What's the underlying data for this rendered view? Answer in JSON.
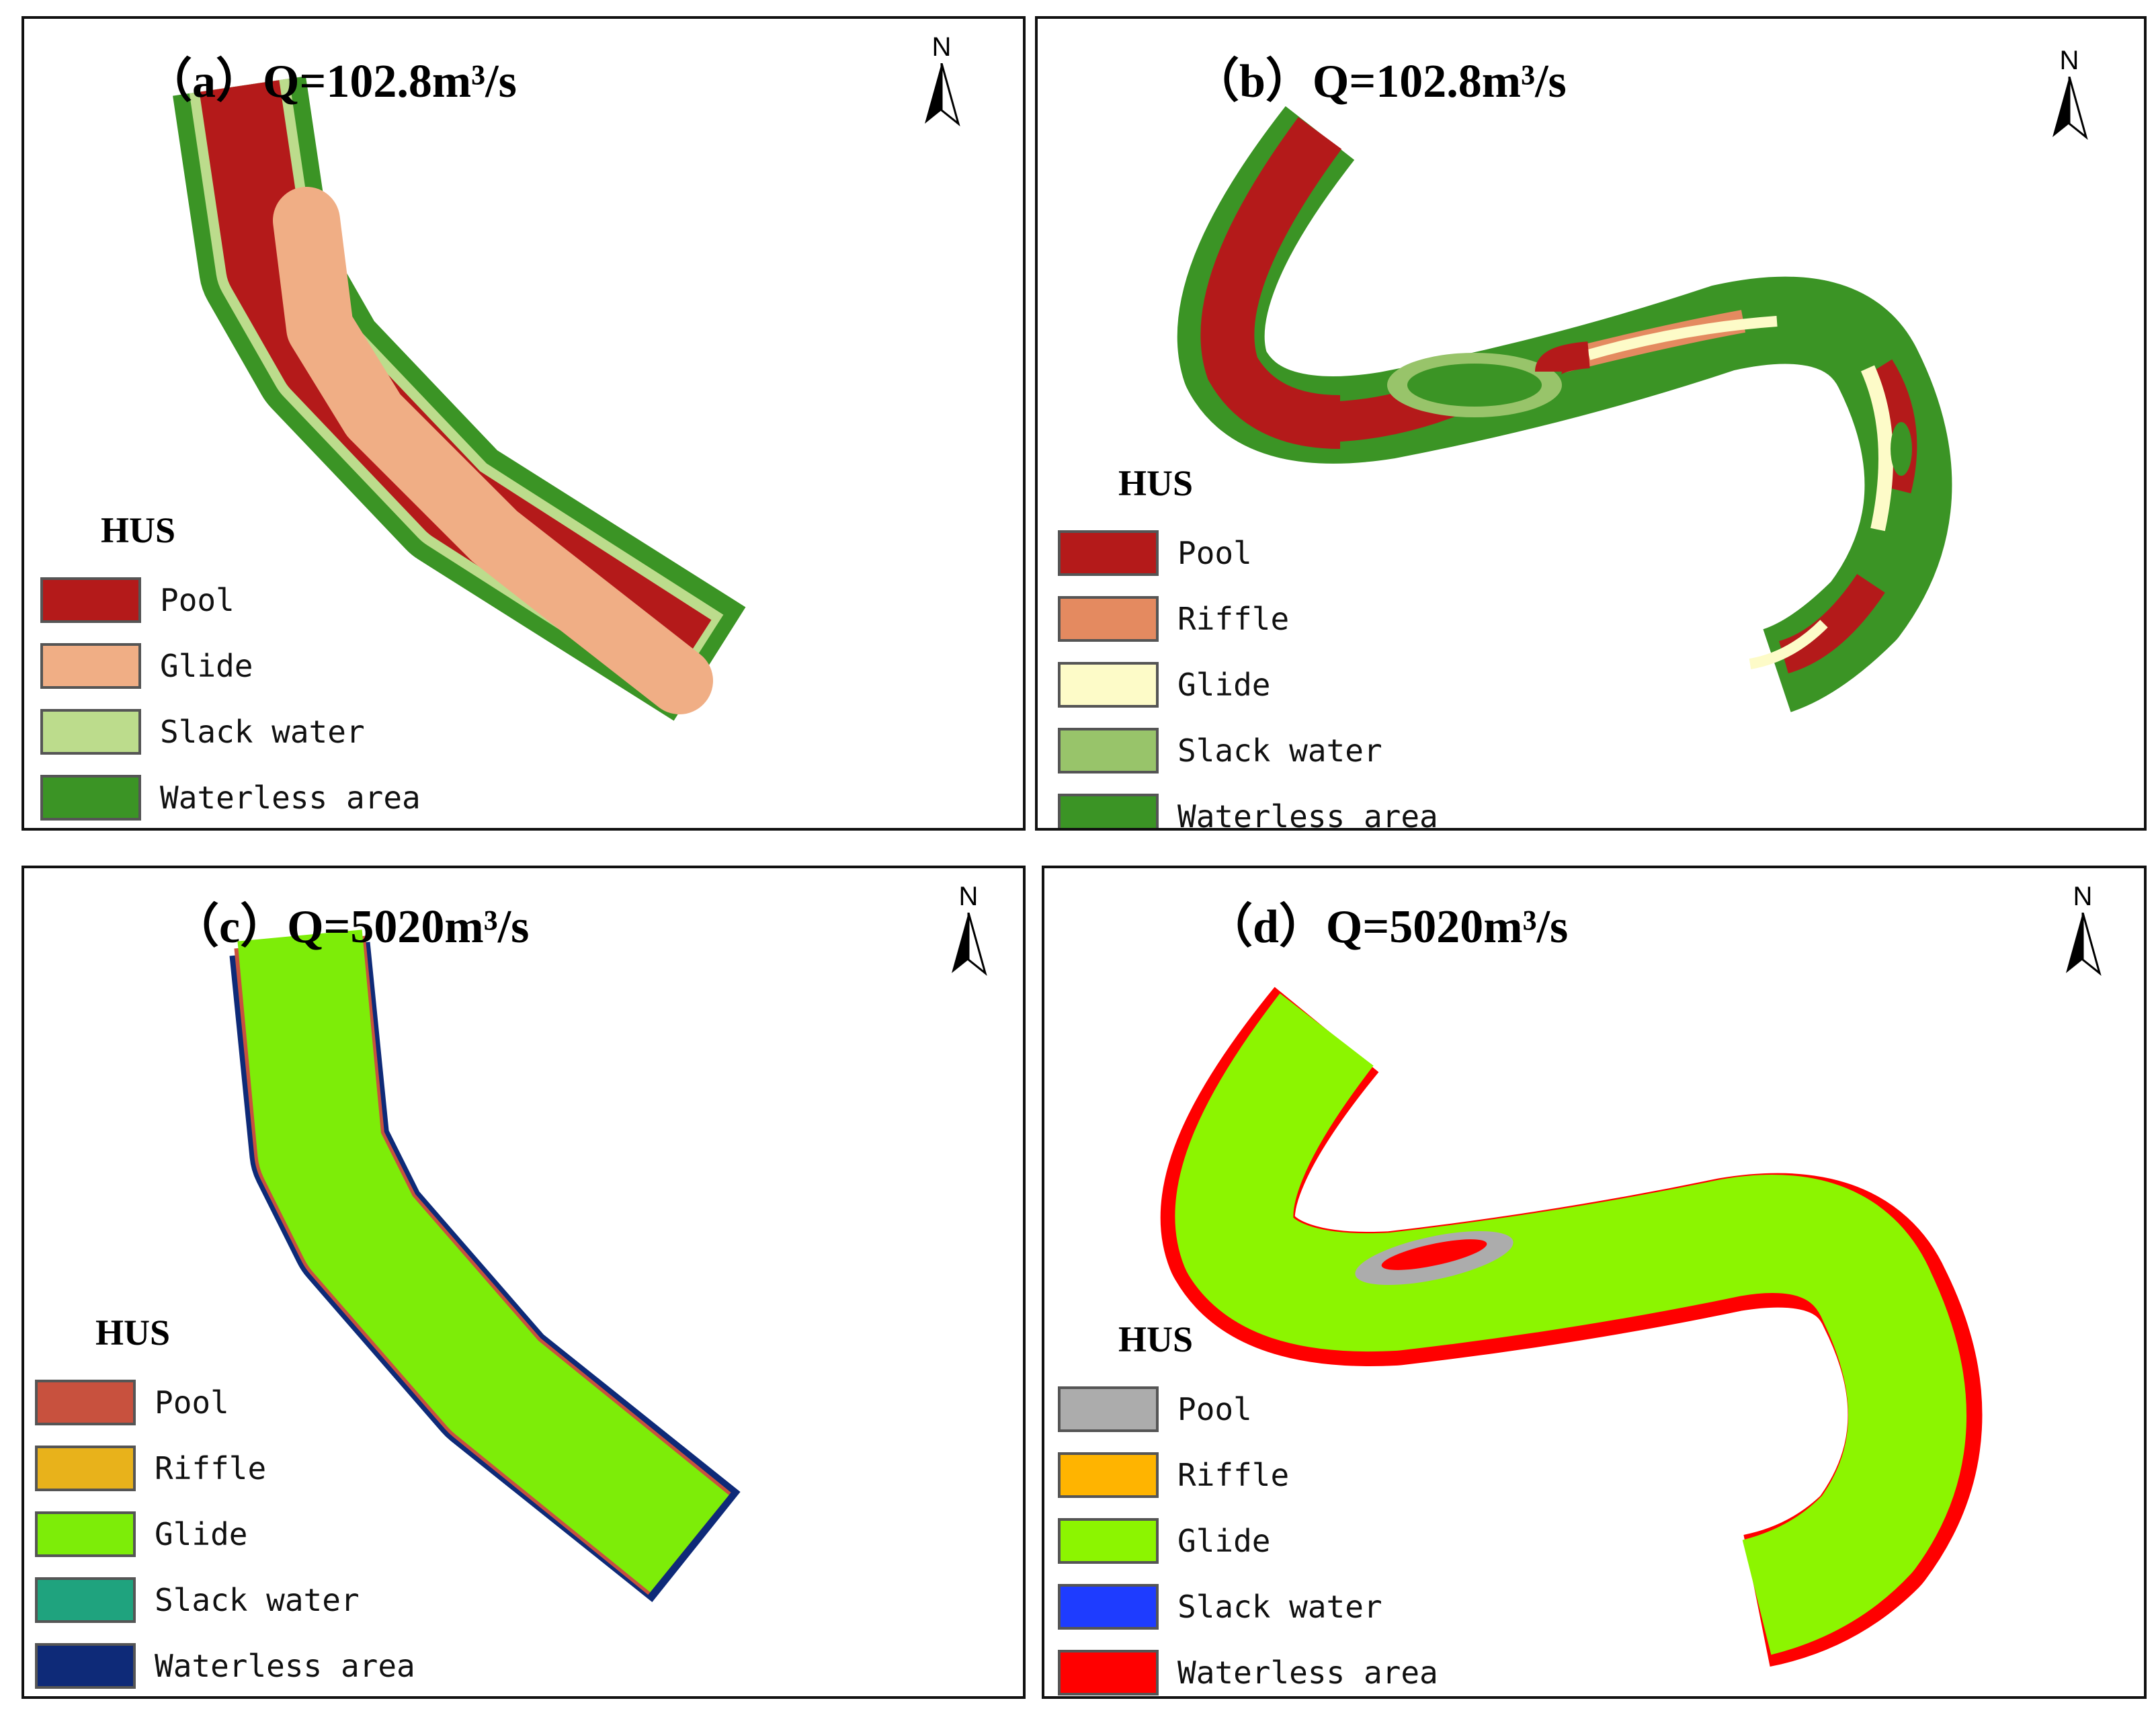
{
  "panels": {
    "a": {
      "title": "（a）Q=102.8m³/s",
      "north": "N",
      "legend_title": "HUS",
      "legend": [
        {
          "label": "Pool",
          "color": "#b41a1a"
        },
        {
          "label": "Glide",
          "color": "#f0ae85"
        },
        {
          "label": "Slack water",
          "color": "#bcdc8c"
        },
        {
          "label": "Waterless area",
          "color": "#3b9425"
        }
      ]
    },
    "b": {
      "title": "（b）Q=102.8m³/s",
      "north": "N",
      "legend_title": "HUS",
      "legend": [
        {
          "label": "Pool",
          "color": "#b41a1a"
        },
        {
          "label": "Riffle",
          "color": "#e48a60"
        },
        {
          "label": "Glide",
          "color": "#fdfbc8"
        },
        {
          "label": "Slack water",
          "color": "#98c46a"
        },
        {
          "label": "Waterless area",
          "color": "#3b9425"
        }
      ]
    },
    "c": {
      "title": "（c）Q=5020m³/s",
      "north": "N",
      "legend_title": "HUS",
      "legend": [
        {
          "label": "Pool",
          "color": "#c8513e"
        },
        {
          "label": "Riffle",
          "color": "#e8b21b"
        },
        {
          "label": "Glide",
          "color": "#7ded08"
        },
        {
          "label": "Slack water",
          "color": "#1fa37e"
        },
        {
          "label": "Waterless area",
          "color": "#0e2a78"
        }
      ]
    },
    "d": {
      "title": "（d）Q=5020m³/s",
      "north": "N",
      "legend_title": "HUS",
      "legend": [
        {
          "label": "Pool",
          "color": "#acacac"
        },
        {
          "label": "Riffle",
          "color": "#ffb400"
        },
        {
          "label": "Glide",
          "color": "#8cf500"
        },
        {
          "label": "Slack water",
          "color": "#1e3cff"
        },
        {
          "label": "Waterless area",
          "color": "#ff0000"
        }
      ]
    }
  }
}
